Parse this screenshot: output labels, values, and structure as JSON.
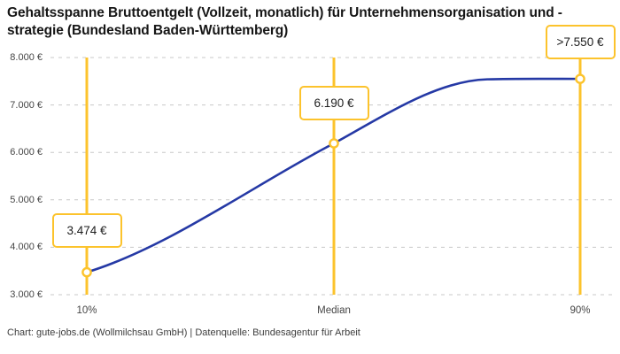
{
  "title": "Gehaltsspanne Bruttoentgelt (Vollzeit, monatlich) für Unternehmensorganisation und -strategie (Bundesland Baden-Württemberg)",
  "source": "Chart: gute-jobs.de (Wollmilchsau GmbH) | Datenquelle: Bundesagentur für Arbeit",
  "chart_data": {
    "type": "line",
    "title": "Gehaltsspanne Bruttoentgelt (Vollzeit, monatlich) für Unternehmensorganisation und -strategie (Bundesland Baden-Württemberg)",
    "categories": [
      "10%",
      "Median",
      "90%"
    ],
    "values": [
      3474,
      6190,
      7550
    ],
    "point_labels": [
      "3.474 €",
      "6.190 €",
      ">7.550 €"
    ],
    "ylim": [
      3000,
      8000
    ],
    "ytick_step": 1000,
    "ytick_labels": [
      "3.000 €",
      "4.000 €",
      "5.000 €",
      "6.000 €",
      "7.000 €",
      "8.000 €"
    ],
    "grid": "horizontal-dashed",
    "legend": "none",
    "line_shape": "smooth, plateaus at capped 90% value",
    "colors": {
      "line": "#2539A5",
      "accent": "#FCC32C",
      "grid": "#C8C8C8",
      "label_box_bg": "#FFFFFF",
      "text": "#1D1D1D"
    },
    "source": "Chart: gute-jobs.de (Wollmilchsau GmbH) | Datenquelle: Bundesagentur für Arbeit"
  }
}
